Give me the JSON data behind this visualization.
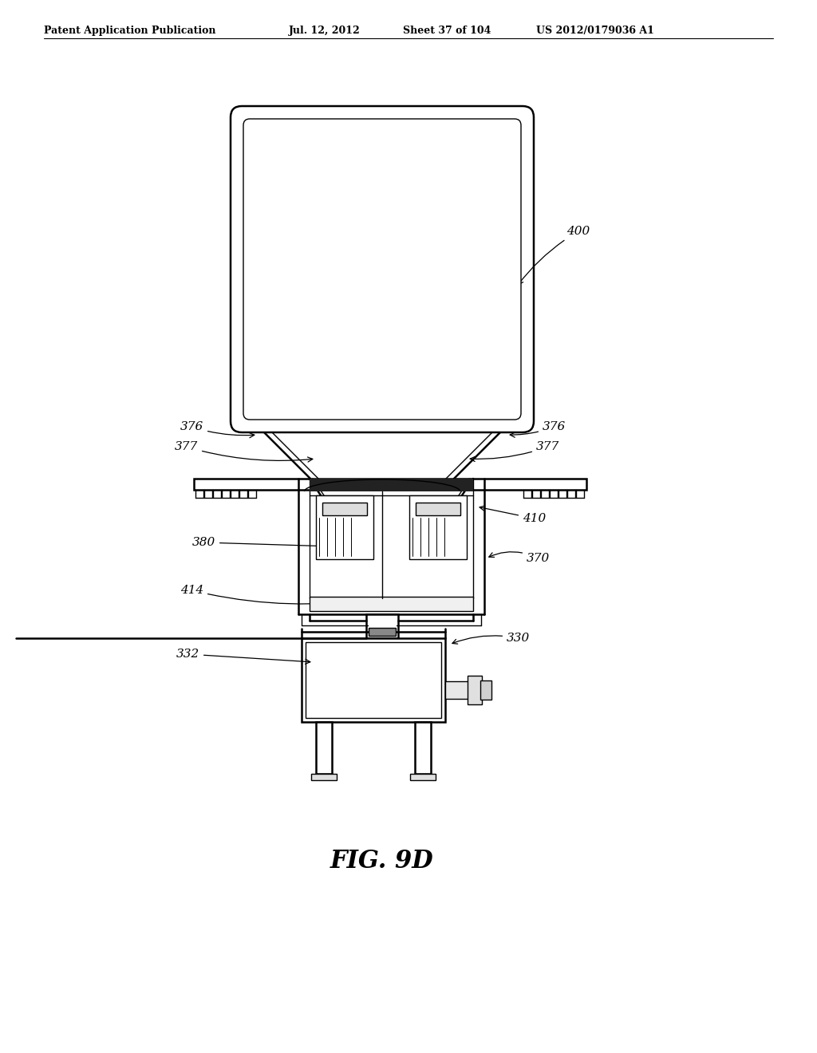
{
  "bg_color": "#ffffff",
  "lc": "#000000",
  "header_text": "Patent Application Publication",
  "header_date": "Jul. 12, 2012",
  "header_sheet": "Sheet 37 of 104",
  "header_patent": "US 2012/0179036 A1",
  "figure_label": "FIG. 9D",
  "label_fs": 11,
  "header_fs": 9
}
